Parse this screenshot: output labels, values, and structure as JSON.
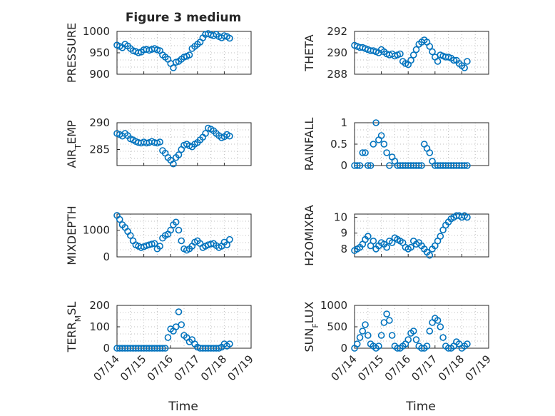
{
  "figure_title": "Figure 3 medium",
  "xlabel": "Time",
  "marker_color": "#0072BD",
  "x_ticks": [
    "07/14",
    "07/15",
    "07/16",
    "07/17",
    "07/18",
    "07/19"
  ],
  "chart_data": [
    {
      "type": "scatter",
      "title": "Figure 3 medium",
      "ylabel": "PRESSURE",
      "ylim": [
        900,
        1000
      ],
      "yticks": [
        900,
        950,
        1000
      ],
      "xlim": [
        0,
        5
      ],
      "grid": true,
      "x": [
        0.0,
        0.1,
        0.2,
        0.3,
        0.4,
        0.5,
        0.6,
        0.7,
        0.8,
        0.9,
        1.0,
        1.1,
        1.2,
        1.3,
        1.4,
        1.5,
        1.6,
        1.7,
        1.8,
        1.9,
        2.0,
        2.1,
        2.2,
        2.3,
        2.4,
        2.5,
        2.6,
        2.7,
        2.8,
        2.9,
        3.0,
        3.1,
        3.2,
        3.3,
        3.4,
        3.5,
        3.6,
        3.7,
        3.8,
        3.9,
        4.0,
        4.1,
        4.2
      ],
      "values": [
        968,
        965,
        962,
        970,
        966,
        960,
        955,
        953,
        950,
        952,
        957,
        958,
        956,
        958,
        960,
        957,
        955,
        945,
        940,
        935,
        925,
        915,
        928,
        930,
        935,
        940,
        942,
        945,
        960,
        965,
        970,
        975,
        985,
        993,
        995,
        992,
        990,
        993,
        988,
        985,
        990,
        988,
        984
      ]
    },
    {
      "type": "scatter",
      "ylabel": "THETA",
      "ylim": [
        288,
        292
      ],
      "yticks": [
        288,
        290,
        292
      ],
      "xlim": [
        0,
        5
      ],
      "grid": true,
      "x": [
        0.0,
        0.1,
        0.2,
        0.3,
        0.4,
        0.5,
        0.6,
        0.7,
        0.8,
        0.9,
        1.0,
        1.1,
        1.2,
        1.3,
        1.4,
        1.5,
        1.6,
        1.7,
        1.8,
        1.9,
        2.0,
        2.1,
        2.2,
        2.3,
        2.4,
        2.5,
        2.6,
        2.7,
        2.8,
        2.9,
        3.0,
        3.1,
        3.2,
        3.3,
        3.4,
        3.5,
        3.6,
        3.7,
        3.8,
        3.9,
        4.0,
        4.1,
        4.2
      ],
      "values": [
        290.7,
        290.6,
        290.5,
        290.5,
        290.4,
        290.3,
        290.2,
        290.2,
        290.1,
        290.0,
        290.3,
        290.1,
        289.9,
        289.8,
        289.9,
        289.7,
        289.8,
        289.9,
        289.2,
        289.0,
        288.9,
        289.3,
        289.8,
        290.3,
        290.8,
        291.0,
        291.2,
        291.0,
        290.6,
        290.1,
        289.6,
        289.2,
        289.8,
        289.7,
        289.6,
        289.6,
        289.5,
        289.3,
        289.3,
        289.0,
        288.8,
        288.6,
        289.2
      ]
    },
    {
      "type": "scatter",
      "ylabel": "AIR_TEMP",
      "ylim": [
        282,
        290
      ],
      "yticks": [
        285,
        290
      ],
      "xlim": [
        0,
        5
      ],
      "grid": true,
      "x": [
        0.0,
        0.1,
        0.2,
        0.3,
        0.4,
        0.5,
        0.6,
        0.7,
        0.8,
        0.9,
        1.0,
        1.1,
        1.2,
        1.3,
        1.4,
        1.5,
        1.6,
        1.7,
        1.8,
        1.9,
        2.0,
        2.1,
        2.2,
        2.3,
        2.4,
        2.5,
        2.6,
        2.7,
        2.8,
        2.9,
        3.0,
        3.1,
        3.2,
        3.3,
        3.4,
        3.5,
        3.6,
        3.7,
        3.8,
        3.9,
        4.0,
        4.1,
        4.2
      ],
      "values": [
        288.0,
        287.8,
        287.5,
        288.0,
        287.6,
        287.0,
        286.8,
        286.5,
        286.3,
        286.2,
        286.4,
        286.2,
        286.3,
        286.5,
        286.3,
        286.2,
        286.4,
        284.8,
        284.3,
        283.5,
        283.0,
        282.3,
        283.5,
        284.0,
        285.0,
        285.8,
        286.0,
        285.7,
        285.5,
        286.0,
        286.3,
        286.8,
        287.3,
        288.0,
        289.0,
        288.8,
        288.5,
        288.0,
        287.6,
        287.2,
        287.4,
        287.8,
        287.5
      ]
    },
    {
      "type": "scatter",
      "ylabel": "RAINFALL",
      "ylim": [
        0,
        1
      ],
      "yticks": [
        0,
        0.5,
        1
      ],
      "xlim": [
        0,
        5
      ],
      "grid": true,
      "x": [
        0.0,
        0.1,
        0.2,
        0.3,
        0.4,
        0.5,
        0.6,
        0.7,
        0.8,
        0.9,
        1.0,
        1.1,
        1.2,
        1.3,
        1.4,
        1.5,
        1.6,
        1.7,
        1.8,
        1.9,
        2.0,
        2.1,
        2.2,
        2.3,
        2.4,
        2.5,
        2.6,
        2.7,
        2.8,
        2.9,
        3.0,
        3.1,
        3.2,
        3.3,
        3.4,
        3.5,
        3.6,
        3.7,
        3.8,
        3.9,
        4.0,
        4.1,
        4.2
      ],
      "values": [
        0,
        0,
        0,
        0.3,
        0.3,
        0,
        0,
        0.5,
        1.0,
        0.6,
        0.7,
        0.5,
        0.3,
        0,
        0.2,
        0.1,
        0,
        0,
        0,
        0,
        0,
        0,
        0,
        0,
        0,
        0,
        0.5,
        0.4,
        0.3,
        0.1,
        0,
        0,
        0,
        0,
        0,
        0,
        0,
        0,
        0,
        0,
        0,
        0,
        0
      ]
    },
    {
      "type": "scatter",
      "ylabel": "MIXDEPTH",
      "ylim": [
        0,
        1600
      ],
      "yticks": [
        0,
        1000
      ],
      "xlim": [
        0,
        5
      ],
      "grid": true,
      "x": [
        0.0,
        0.1,
        0.2,
        0.3,
        0.4,
        0.5,
        0.6,
        0.7,
        0.8,
        0.9,
        1.0,
        1.1,
        1.2,
        1.3,
        1.4,
        1.5,
        1.6,
        1.7,
        1.8,
        1.9,
        2.0,
        2.1,
        2.2,
        2.3,
        2.4,
        2.5,
        2.6,
        2.7,
        2.8,
        2.9,
        3.0,
        3.1,
        3.2,
        3.3,
        3.4,
        3.5,
        3.6,
        3.7,
        3.8,
        3.9,
        4.0,
        4.1,
        4.2
      ],
      "values": [
        1550,
        1400,
        1200,
        1100,
        950,
        800,
        600,
        450,
        400,
        350,
        380,
        420,
        450,
        480,
        500,
        300,
        400,
        700,
        800,
        850,
        1000,
        1200,
        1300,
        1000,
        600,
        300,
        250,
        300,
        400,
        550,
        600,
        500,
        350,
        400,
        450,
        480,
        500,
        420,
        350,
        400,
        550,
        450,
        650
      ]
    },
    {
      "type": "scatter",
      "ylabel": "H2OMIXRA",
      "ylim": [
        7.5,
        10.2
      ],
      "yticks": [
        8,
        9,
        10
      ],
      "xlim": [
        0,
        5
      ],
      "grid": true,
      "x": [
        0.0,
        0.1,
        0.2,
        0.3,
        0.4,
        0.5,
        0.6,
        0.7,
        0.8,
        0.9,
        1.0,
        1.1,
        1.2,
        1.3,
        1.4,
        1.5,
        1.6,
        1.7,
        1.8,
        1.9,
        2.0,
        2.1,
        2.2,
        2.3,
        2.4,
        2.5,
        2.6,
        2.7,
        2.8,
        2.9,
        3.0,
        3.1,
        3.2,
        3.3,
        3.4,
        3.5,
        3.6,
        3.7,
        3.8,
        3.9,
        4.0,
        4.1,
        4.2
      ],
      "values": [
        7.9,
        8.0,
        8.1,
        8.3,
        8.6,
        8.8,
        8.2,
        8.5,
        8.0,
        8.2,
        8.4,
        8.3,
        8.1,
        8.5,
        8.4,
        8.7,
        8.6,
        8.5,
        8.4,
        8.1,
        8.0,
        8.1,
        8.5,
        8.3,
        8.4,
        8.2,
        8.0,
        7.8,
        7.6,
        8.0,
        8.2,
        8.5,
        8.8,
        9.2,
        9.5,
        9.7,
        9.9,
        10.0,
        10.1,
        10.1,
        10.0,
        10.1,
        10.0
      ]
    },
    {
      "type": "scatter",
      "ylabel": "TERR_MSL",
      "ylim": [
        0,
        200
      ],
      "yticks": [
        0,
        100,
        200
      ],
      "xlim": [
        0,
        5
      ],
      "grid": true,
      "x": [
        0.0,
        0.1,
        0.2,
        0.3,
        0.4,
        0.5,
        0.6,
        0.7,
        0.8,
        0.9,
        1.0,
        1.1,
        1.2,
        1.3,
        1.4,
        1.5,
        1.6,
        1.7,
        1.8,
        1.9,
        2.0,
        2.1,
        2.2,
        2.3,
        2.4,
        2.5,
        2.6,
        2.7,
        2.8,
        2.9,
        3.0,
        3.1,
        3.2,
        3.3,
        3.4,
        3.5,
        3.6,
        3.7,
        3.8,
        3.9,
        4.0,
        4.1,
        4.2
      ],
      "values": [
        0,
        0,
        0,
        0,
        0,
        0,
        0,
        0,
        0,
        0,
        0,
        0,
        0,
        0,
        0,
        0,
        0,
        0,
        0,
        50,
        90,
        80,
        100,
        170,
        110,
        60,
        50,
        30,
        40,
        20,
        5,
        0,
        0,
        0,
        0,
        0,
        0,
        0,
        0,
        5,
        20,
        10,
        20
      ]
    },
    {
      "type": "scatter",
      "ylabel": "SUN_FLUX",
      "ylim": [
        0,
        1000
      ],
      "yticks": [
        0,
        500,
        1000
      ],
      "xlim": [
        0,
        5
      ],
      "grid": true,
      "x": [
        0.0,
        0.1,
        0.2,
        0.3,
        0.4,
        0.5,
        0.6,
        0.7,
        0.8,
        0.9,
        1.0,
        1.1,
        1.2,
        1.3,
        1.4,
        1.5,
        1.6,
        1.7,
        1.8,
        1.9,
        2.0,
        2.1,
        2.2,
        2.3,
        2.4,
        2.5,
        2.6,
        2.7,
        2.8,
        2.9,
        3.0,
        3.1,
        3.2,
        3.3,
        3.4,
        3.5,
        3.6,
        3.7,
        3.8,
        3.9,
        4.0,
        4.1,
        4.2
      ],
      "values": [
        0,
        100,
        250,
        400,
        550,
        300,
        100,
        50,
        0,
        50,
        300,
        600,
        800,
        650,
        300,
        50,
        0,
        0,
        50,
        100,
        200,
        350,
        400,
        200,
        50,
        0,
        0,
        50,
        400,
        600,
        700,
        650,
        500,
        250,
        50,
        0,
        0,
        50,
        150,
        100,
        0,
        50,
        100
      ]
    }
  ]
}
